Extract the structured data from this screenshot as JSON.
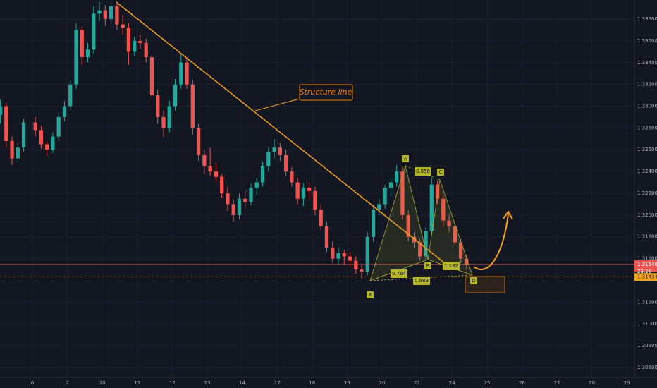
{
  "chart_data": {
    "type": "candlestick",
    "categories": [
      null,
      "6",
      "7",
      "10",
      "11",
      "12",
      "13",
      "14",
      "17",
      "18",
      "19",
      "20",
      "21",
      "24",
      "25",
      "26",
      "27",
      "28",
      "29"
    ],
    "candles": [
      [
        [
          1.3292,
          1.3306,
          1.3284,
          1.33
        ],
        [
          1.33,
          1.3303,
          1.3262,
          1.3268
        ],
        [
          1.3268,
          1.3272,
          1.3246,
          1.3252
        ],
        [
          1.3252,
          1.3266,
          1.3248,
          1.3262
        ],
        [
          1.3262,
          1.3289,
          1.3258,
          1.3285
        ]
      ],
      [
        [
          1.3285,
          1.329,
          1.3272,
          1.3278
        ],
        [
          1.3278,
          1.3282,
          1.3261,
          1.3265
        ],
        [
          1.3265,
          1.3268,
          1.3254,
          1.326
        ],
        [
          1.326,
          1.3276,
          1.3257,
          1.3272
        ],
        [
          1.3272,
          1.3294,
          1.3268,
          1.329
        ],
        [
          1.329,
          1.3305,
          1.3286,
          1.33
        ]
      ],
      [
        [
          1.33,
          1.3324,
          1.3296,
          1.332
        ],
        [
          1.332,
          1.3376,
          1.3316,
          1.337
        ],
        [
          1.337,
          1.3373,
          1.3338,
          1.3345
        ],
        [
          1.3345,
          1.3358,
          1.334,
          1.3352
        ],
        [
          1.3352,
          1.3392,
          1.3348,
          1.3385
        ],
        [
          1.3385,
          1.3396,
          1.3378,
          1.3388
        ]
      ],
      [
        [
          1.3388,
          1.3393,
          1.3374,
          1.338
        ],
        [
          1.338,
          1.3397,
          1.3376,
          1.3392
        ],
        [
          1.3392,
          1.3395,
          1.337,
          1.3375
        ],
        [
          1.3375,
          1.3384,
          1.3366,
          1.3372
        ],
        [
          1.3372,
          1.3376,
          1.3338,
          1.335
        ],
        [
          1.335,
          1.3364,
          1.3346,
          1.336
        ]
      ],
      [
        [
          1.336,
          1.3366,
          1.3352,
          1.3358
        ],
        [
          1.3358,
          1.3362,
          1.334,
          1.3345
        ],
        [
          1.3345,
          1.3348,
          1.3305,
          1.331
        ],
        [
          1.331,
          1.3315,
          1.3284,
          1.329
        ],
        [
          1.329,
          1.3296,
          1.3272,
          1.328
        ],
        [
          1.328,
          1.3305,
          1.3276,
          1.33
        ]
      ],
      [
        [
          1.33,
          1.3325,
          1.3296,
          1.332
        ],
        [
          1.332,
          1.3348,
          1.3316,
          1.334
        ],
        [
          1.334,
          1.3344,
          1.3316,
          1.332
        ],
        [
          1.332,
          1.3324,
          1.3274,
          1.328
        ],
        [
          1.328,
          1.3284,
          1.325,
          1.3255
        ],
        [
          1.3255,
          1.326,
          1.3238,
          1.3245
        ]
      ],
      [
        [
          1.3245,
          1.3262,
          1.3236,
          1.324
        ],
        [
          1.324,
          1.3248,
          1.323,
          1.3235
        ],
        [
          1.3235,
          1.3238,
          1.3216,
          1.322
        ],
        [
          1.322,
          1.3226,
          1.3204,
          1.321
        ],
        [
          1.321,
          1.3214,
          1.3194,
          1.32
        ],
        [
          1.32,
          1.322,
          1.3196,
          1.3215
        ]
      ],
      [
        [
          1.3215,
          1.3224,
          1.3206,
          1.3212
        ],
        [
          1.3212,
          1.3229,
          1.3209,
          1.3225
        ],
        [
          1.3225,
          1.3234,
          1.3218,
          1.323
        ],
        [
          1.323,
          1.3249,
          1.3226,
          1.3245
        ],
        [
          1.3245,
          1.3262,
          1.324,
          1.3258
        ],
        [
          1.3258,
          1.327,
          1.3252,
          1.3262
        ]
      ],
      [
        [
          1.3262,
          1.3266,
          1.325,
          1.3255
        ],
        [
          1.3255,
          1.326,
          1.3236,
          1.324
        ],
        [
          1.324,
          1.3244,
          1.3226,
          1.323
        ],
        [
          1.323,
          1.3234,
          1.321,
          1.3215
        ],
        [
          1.3215,
          1.3229,
          1.3208,
          1.3225
        ],
        [
          1.3225,
          1.323,
          1.3215,
          1.3222
        ]
      ],
      [
        [
          1.3222,
          1.3226,
          1.32,
          1.3205
        ],
        [
          1.3205,
          1.321,
          1.3186,
          1.319
        ],
        [
          1.319,
          1.3194,
          1.3166,
          1.317
        ],
        [
          1.317,
          1.3176,
          1.3156,
          1.316
        ],
        [
          1.316,
          1.317,
          1.3154,
          1.3165
        ],
        [
          1.3165,
          1.3168,
          1.3155,
          1.3162
        ]
      ],
      [
        [
          1.3162,
          1.3166,
          1.3152,
          1.3158
        ],
        [
          1.3158,
          1.3162,
          1.3146,
          1.315
        ],
        [
          1.315,
          1.3154,
          1.3142,
          1.3148
        ],
        [
          1.3148,
          1.3184,
          1.3145,
          1.318
        ],
        [
          1.318,
          1.3209,
          1.3176,
          1.3205
        ],
        [
          1.3205,
          1.3215,
          1.32,
          1.321
        ]
      ],
      [
        [
          1.321,
          1.3228,
          1.3206,
          1.3225
        ],
        [
          1.3225,
          1.3234,
          1.3218,
          1.323
        ],
        [
          1.323,
          1.3246,
          1.3226,
          1.324
        ],
        [
          1.324,
          1.3244,
          1.3196,
          1.32
        ],
        [
          1.32,
          1.3204,
          1.3176,
          1.318
        ],
        [
          1.318,
          1.3184,
          1.317,
          1.3175
        ]
      ],
      [
        [
          1.3175,
          1.3178,
          1.3158,
          1.3162
        ],
        [
          1.3162,
          1.3189,
          1.3159,
          1.3185
        ],
        [
          1.3185,
          1.3234,
          1.3182,
          1.3228
        ],
        [
          1.3228,
          1.3232,
          1.321,
          1.3215
        ],
        [
          1.3215,
          1.3218,
          1.319,
          1.3195
        ],
        [
          1.3195,
          1.32,
          1.3184,
          1.319
        ]
      ],
      [
        [
          1.319,
          1.3194,
          1.3172,
          1.3175
        ],
        [
          1.3175,
          1.3178,
          1.3156,
          1.316
        ],
        [
          1.316,
          1.3164,
          1.315,
          1.31546
        ]
      ],
      [],
      [],
      [],
      [],
      []
    ],
    "up_color": "#26a69a",
    "down_color": "#ef5350",
    "ylim": [
      1.30509,
      1.33975
    ],
    "yticks": [
      {
        "value": 1.338,
        "label": "1.33800"
      },
      {
        "value": 1.336,
        "label": "1.33600"
      },
      {
        "value": 1.334,
        "label": "1.33400"
      },
      {
        "value": 1.332,
        "label": "1.33200"
      },
      {
        "value": 1.33,
        "label": "1.33000"
      },
      {
        "value": 1.328,
        "label": "1.32800"
      },
      {
        "value": 1.326,
        "label": "1.32600"
      },
      {
        "value": 1.324,
        "label": "1.32400"
      },
      {
        "value": 1.322,
        "label": "1.32200"
      },
      {
        "value": 1.32,
        "label": "1.32000"
      },
      {
        "value": 1.318,
        "label": "1.31800"
      },
      {
        "value": 1.316,
        "label": "1.31600"
      },
      {
        "value": 1.312,
        "label": "1.31200"
      },
      {
        "value": 1.31,
        "label": "1.31000"
      },
      {
        "value": 1.308,
        "label": "1.30800"
      },
      {
        "value": 1.306,
        "label": "1.30600"
      }
    ],
    "grid": true,
    "last_price": 1.31546,
    "countdown": "23:29",
    "level": 1.31434,
    "annotations": {
      "structure_label": "Structure line",
      "points": [
        "X",
        "A",
        "B",
        "C",
        "D"
      ],
      "ratios": [
        "0.856",
        "0.764",
        "1.182",
        "0.883"
      ]
    }
  }
}
